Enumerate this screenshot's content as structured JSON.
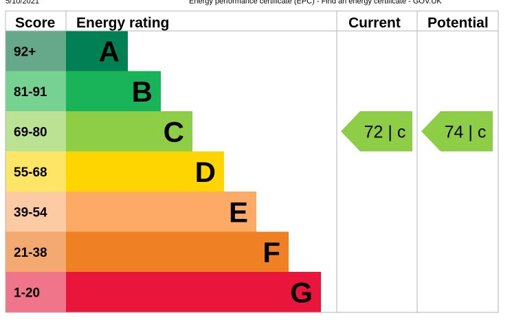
{
  "page_header": {
    "date": "5/10/2021",
    "title": "Energy performance certificate (EPC) - Find an energy certificate - GOV.UK"
  },
  "chart_data": {
    "type": "bar",
    "columns": {
      "score": "Score",
      "rating": "Energy rating",
      "current": "Current",
      "potential": "Potential"
    },
    "bands": [
      {
        "score": "92+",
        "letter": "A",
        "color": "#008054",
        "tint": "#66a98a"
      },
      {
        "score": "81-91",
        "letter": "B",
        "color": "#19b459",
        "tint": "#75d290"
      },
      {
        "score": "69-80",
        "letter": "C",
        "color": "#8dce46",
        "tint": "#bbe293"
      },
      {
        "score": "55-68",
        "letter": "D",
        "color": "#ffd500",
        "tint": "#ffe566"
      },
      {
        "score": "39-54",
        "letter": "E",
        "color": "#fcaa65",
        "tint": "#fdcba3"
      },
      {
        "score": "21-38",
        "letter": "F",
        "color": "#ef8023",
        "tint": "#f4a970"
      },
      {
        "score": "1-20",
        "letter": "G",
        "color": "#e9153b",
        "tint": "#f0748a"
      }
    ],
    "current": {
      "value": 72,
      "letter": "c",
      "band": "C"
    },
    "potential": {
      "value": 74,
      "letter": "c",
      "band": "C"
    }
  }
}
